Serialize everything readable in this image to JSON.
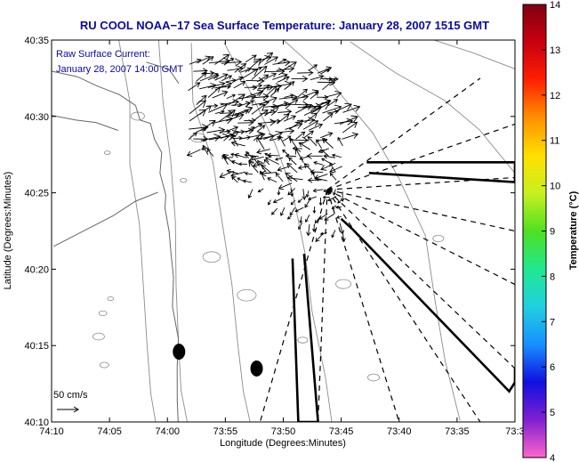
{
  "colors": {
    "title": "#0a0aa0",
    "annotation": "#0a0aa0",
    "contour": "#8c8c8c",
    "coast": "#666666",
    "vector": "#000000",
    "colorbar_stops": [
      "#ff66cc",
      "#8020d0",
      "#1010e0",
      "#1890ff",
      "#20d0e0",
      "#20e890",
      "#50e020",
      "#c8f020",
      "#ffe000",
      "#ff9000",
      "#ff2000",
      "#c80010",
      "#800010"
    ]
  },
  "chart_data": {
    "type": "vector-field",
    "title": "RU COOL  NOAA−17  Sea Surface Temperature:  January 28, 2007 1515 GMT",
    "annotation_line1": "Raw Surface Current:",
    "annotation_line2": "January 28, 2007 14:00 GMT",
    "xlabel": "Longitude (Degrees:Minutes)",
    "ylabel": "Latitude (Degrees:Minutes)",
    "x_ticks": [
      "74:10",
      "74:05",
      "74:00",
      "73:55",
      "73:50",
      "73:45",
      "73:40",
      "73:35",
      "73:3"
    ],
    "y_ticks": [
      "40:10",
      "40:15",
      "40:20",
      "40:25",
      "40:30",
      "40:35"
    ],
    "xlim_minutes_west": [
      70,
      30
    ],
    "ylim_minutes_north": [
      10,
      35
    ],
    "scale_label": "50 cm/s",
    "colorbar": {
      "label": "Temperature (°C)",
      "range": [
        4,
        14
      ],
      "ticks": [
        "4",
        "5",
        "6",
        "7",
        "8",
        "9",
        "10",
        "11",
        "12",
        "13",
        "14"
      ]
    },
    "markers": [
      {
        "lon_min_w": 59,
        "lat_min_n": 14.6
      },
      {
        "lon_min_w": 52.3,
        "lat_min_n": 13.5
      }
    ]
  }
}
